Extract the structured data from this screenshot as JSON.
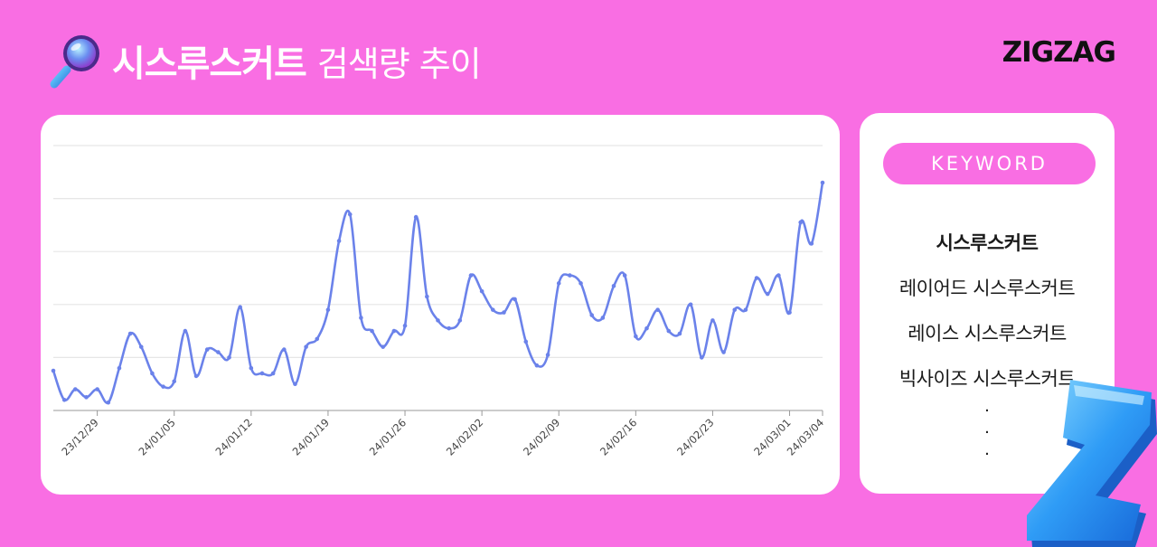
{
  "header": {
    "keyword": "시스루스커트",
    "title_rest": "검색량 추이",
    "icon": "magnifier-icon"
  },
  "brand": "ZIGZAG",
  "keywords_panel": {
    "label": "KEYWORD",
    "items": [
      {
        "text": "시스루스커트",
        "bold": true
      },
      {
        "text": "레이어드 시스루스커트",
        "bold": false
      },
      {
        "text": "레이스 시스루스커트",
        "bold": false
      },
      {
        "text": "빅사이즈 시스루스커트",
        "bold": false
      }
    ],
    "ellipsis": [
      "·",
      "·",
      "·"
    ]
  },
  "colors": {
    "background": "#f96ee3",
    "line": "#6b82ea",
    "grid": "#e6e6e6",
    "pill": "#f96ee3"
  },
  "chart_data": {
    "type": "line",
    "title": "",
    "xlabel": "",
    "ylabel": "",
    "x_ticks": [
      "23/12/29",
      "24/01/05",
      "24/01/12",
      "24/01/19",
      "24/01/26",
      "24/02/02",
      "24/02/09",
      "24/02/16",
      "24/02/23",
      "24/03/01",
      "24/03/04"
    ],
    "x_tick_dates": [
      "2023-12-29",
      "2024-01-05",
      "2024-01-12",
      "2024-01-19",
      "2024-01-26",
      "2024-02-02",
      "2024-02-09",
      "2024-02-16",
      "2024-02-23",
      "2024-03-01",
      "2024-03-04"
    ],
    "grid": true,
    "y_axis_labels": false,
    "ylim": [
      0,
      100
    ],
    "series": [
      {
        "points": [
          [
            "2023-12-25",
            15
          ],
          [
            "2023-12-26",
            4
          ],
          [
            "2023-12-27",
            8
          ],
          [
            "2023-12-28",
            5
          ],
          [
            "2023-12-29",
            8
          ],
          [
            "2023-12-30",
            3
          ],
          [
            "2023-12-31",
            16
          ],
          [
            "2024-01-01",
            29
          ],
          [
            "2024-01-02",
            24
          ],
          [
            "2024-01-03",
            14
          ],
          [
            "2024-01-04",
            9
          ],
          [
            "2024-01-05",
            11
          ],
          [
            "2024-01-06",
            30
          ],
          [
            "2024-01-07",
            13
          ],
          [
            "2024-01-08",
            23
          ],
          [
            "2024-01-09",
            22
          ],
          [
            "2024-01-10",
            20
          ],
          [
            "2024-01-11",
            39
          ],
          [
            "2024-01-12",
            16
          ],
          [
            "2024-01-13",
            14
          ],
          [
            "2024-01-14",
            14
          ],
          [
            "2024-01-15",
            23
          ],
          [
            "2024-01-16",
            10
          ],
          [
            "2024-01-17",
            24
          ],
          [
            "2024-01-18",
            27
          ],
          [
            "2024-01-19",
            38
          ],
          [
            "2024-01-20",
            64
          ],
          [
            "2024-01-21",
            74
          ],
          [
            "2024-01-22",
            35
          ],
          [
            "2024-01-23",
            30
          ],
          [
            "2024-01-24",
            24
          ],
          [
            "2024-01-25",
            30
          ],
          [
            "2024-01-26",
            32
          ],
          [
            "2024-01-27",
            73
          ],
          [
            "2024-01-28",
            43
          ],
          [
            "2024-01-29",
            34
          ],
          [
            "2024-01-30",
            31
          ],
          [
            "2024-01-31",
            34
          ],
          [
            "2024-02-01",
            51
          ],
          [
            "2024-02-02",
            45
          ],
          [
            "2024-02-03",
            38
          ],
          [
            "2024-02-04",
            37
          ],
          [
            "2024-02-05",
            42
          ],
          [
            "2024-02-06",
            26
          ],
          [
            "2024-02-07",
            17
          ],
          [
            "2024-02-08",
            21
          ],
          [
            "2024-02-09",
            48
          ],
          [
            "2024-02-10",
            51
          ],
          [
            "2024-02-11",
            48
          ],
          [
            "2024-02-12",
            36
          ],
          [
            "2024-02-13",
            35
          ],
          [
            "2024-02-14",
            47
          ],
          [
            "2024-02-15",
            51
          ],
          [
            "2024-02-16",
            28
          ],
          [
            "2024-02-17",
            31
          ],
          [
            "2024-02-18",
            38
          ],
          [
            "2024-02-19",
            30
          ],
          [
            "2024-02-20",
            29
          ],
          [
            "2024-02-21",
            40
          ],
          [
            "2024-02-22",
            20
          ],
          [
            "2024-02-23",
            34
          ],
          [
            "2024-02-24",
            22
          ],
          [
            "2024-02-25",
            38
          ],
          [
            "2024-02-26",
            38
          ],
          [
            "2024-02-27",
            50
          ],
          [
            "2024-02-28",
            44
          ],
          [
            "2024-02-29",
            51
          ],
          [
            "2024-03-01",
            37
          ],
          [
            "2024-03-02",
            71
          ],
          [
            "2024-03-03",
            63
          ],
          [
            "2024-03-04",
            86
          ]
        ]
      }
    ]
  }
}
